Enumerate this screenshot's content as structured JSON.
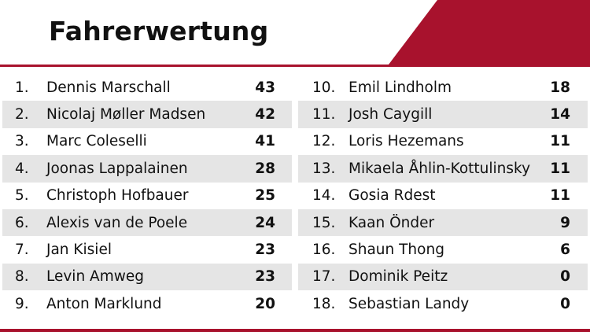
{
  "header": {
    "title": "Fahrerwertung",
    "accent_color": "#a8122d"
  },
  "standings": {
    "left": [
      {
        "rank": "1.",
        "name": "Dennis Marschall",
        "points": "43"
      },
      {
        "rank": "2.",
        "name": "Nicolaj Møller Madsen",
        "points": "42"
      },
      {
        "rank": "3.",
        "name": "Marc Coleselli",
        "points": "41"
      },
      {
        "rank": "4.",
        "name": "Joonas Lappalainen",
        "points": "28"
      },
      {
        "rank": "5.",
        "name": "Christoph Hofbauer",
        "points": "25"
      },
      {
        "rank": "6.",
        "name": "Alexis van de Poele",
        "points": "24"
      },
      {
        "rank": "7.",
        "name": "Jan Kisiel",
        "points": "23"
      },
      {
        "rank": "8.",
        "name": "Levin Amweg",
        "points": "23"
      },
      {
        "rank": "9.",
        "name": "Anton Marklund",
        "points": "20"
      }
    ],
    "right": [
      {
        "rank": "10.",
        "name": "Emil Lindholm",
        "points": "18"
      },
      {
        "rank": "11.",
        "name": "Josh Caygill",
        "points": "14"
      },
      {
        "rank": "12.",
        "name": "Loris Hezemans",
        "points": "11"
      },
      {
        "rank": "13.",
        "name": "Mikaela Åhlin-Kottulinsky",
        "points": "11"
      },
      {
        "rank": "14.",
        "name": "Gosia Rdest",
        "points": "11"
      },
      {
        "rank": "15.",
        "name": "Kaan Önder",
        "points": "9"
      },
      {
        "rank": "16.",
        "name": "Shaun Thong",
        "points": "6"
      },
      {
        "rank": "17.",
        "name": "Dominik Peitz",
        "points": "0"
      },
      {
        "rank": "18.",
        "name": "Sebastian Landy",
        "points": "0"
      }
    ]
  }
}
